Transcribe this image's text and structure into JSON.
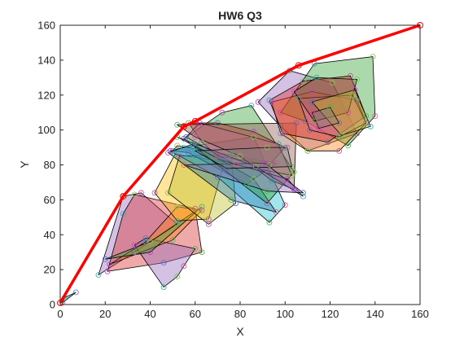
{
  "chart_data": {
    "type": "scatter",
    "title": "HW6 Q3",
    "xlabel": "X",
    "ylabel": "Y",
    "xlim": [
      0,
      160
    ],
    "ylim": [
      0,
      160
    ],
    "xticks": [
      "0",
      "20",
      "40",
      "60",
      "80",
      "100",
      "120",
      "140",
      "160"
    ],
    "yticks": [
      "0",
      "20",
      "40",
      "60",
      "80",
      "100",
      "120",
      "140",
      "160"
    ],
    "grid": false,
    "box": true,
    "hull_line": {
      "color": "#ff0000",
      "marker_color": "#ff0000",
      "points": [
        [
          0,
          1
        ],
        [
          28,
          62
        ],
        [
          55,
          102
        ],
        [
          60,
          105
        ],
        [
          106,
          137
        ],
        [
          160,
          160
        ]
      ]
    },
    "marker_colors": [
      "#4caf50",
      "#5b6abf",
      "#c040c0",
      "#2ca8a8",
      "#7cc74d",
      "#d24d8c"
    ],
    "polygons": [
      {
        "color": "#1f77b4",
        "points": [
          [
            2,
            4
          ],
          [
            7,
            7
          ],
          [
            1,
            1
          ]
        ]
      },
      {
        "color": "#9467bd",
        "points": [
          [
            17,
            17
          ],
          [
            28,
            62
          ],
          [
            36,
            64
          ],
          [
            52,
            46
          ],
          [
            33,
            30
          ]
        ]
      },
      {
        "color": "#d62728",
        "points": [
          [
            21,
            19
          ],
          [
            28,
            52
          ],
          [
            33,
            63
          ],
          [
            60,
            55
          ],
          [
            63,
            30
          ],
          [
            46,
            24
          ]
        ]
      },
      {
        "color": "#9467bd",
        "points": [
          [
            33,
            34
          ],
          [
            46,
            10
          ],
          [
            52,
            16
          ],
          [
            55,
            22
          ],
          [
            60,
            32
          ],
          [
            38,
            38
          ]
        ]
      },
      {
        "color": "#ff7f0e",
        "points": [
          [
            22,
            23
          ],
          [
            38,
            36
          ],
          [
            52,
            56
          ],
          [
            63,
            54
          ],
          [
            50,
            37
          ]
        ]
      },
      {
        "color": "#2ca02c",
        "points": [
          [
            20,
            26
          ],
          [
            40,
            30
          ],
          [
            63,
            56
          ],
          [
            40,
            36
          ]
        ]
      },
      {
        "color": "#ffbf00",
        "points": [
          [
            42,
            64
          ],
          [
            51,
            86
          ],
          [
            73,
            82
          ],
          [
            66,
            49
          ],
          [
            52,
            48
          ]
        ]
      },
      {
        "color": "#bcbd22",
        "points": [
          [
            48,
            64
          ],
          [
            53,
            85
          ],
          [
            76,
            86
          ],
          [
            78,
            58
          ],
          [
            66,
            46
          ]
        ]
      },
      {
        "color": "#8c564b",
        "points": [
          [
            50,
            88
          ],
          [
            52,
            91
          ],
          [
            96,
            81
          ],
          [
            83,
            69
          ],
          [
            57,
            87
          ]
        ]
      },
      {
        "color": "#17becf",
        "points": [
          [
            49,
            88
          ],
          [
            55,
            90
          ],
          [
            86,
            96
          ],
          [
            100,
            57
          ],
          [
            93,
            47
          ],
          [
            70,
            73
          ]
        ]
      },
      {
        "color": "#1f77b4",
        "points": [
          [
            48,
            87
          ],
          [
            59,
            92
          ],
          [
            86,
            72
          ],
          [
            96,
            53
          ],
          [
            76,
            60
          ]
        ]
      },
      {
        "color": "#2ca02c",
        "points": [
          [
            55,
            95
          ],
          [
            72,
            110
          ],
          [
            85,
            114
          ],
          [
            104,
            76
          ],
          [
            92,
            58
          ]
        ]
      },
      {
        "color": "#d62728",
        "points": [
          [
            57,
            104
          ],
          [
            70,
            104
          ],
          [
            86,
            99
          ],
          [
            100,
            90
          ],
          [
            93,
            80
          ],
          [
            70,
            85
          ],
          [
            63,
            93
          ]
        ]
      },
      {
        "color": "#e377c2",
        "points": [
          [
            56,
            96
          ],
          [
            62,
            104
          ],
          [
            97,
            92
          ],
          [
            103,
            74
          ],
          [
            78,
            80
          ]
        ]
      },
      {
        "color": "#8c564b",
        "points": [
          [
            52,
            103
          ],
          [
            105,
            104
          ],
          [
            104,
            66
          ],
          [
            94,
            71
          ],
          [
            80,
            85
          ],
          [
            60,
            96
          ]
        ]
      },
      {
        "color": "#9467bd",
        "points": [
          [
            52,
            96
          ],
          [
            71,
            83
          ],
          [
            101,
            72
          ],
          [
            108,
            62
          ],
          [
            87,
            79
          ]
        ]
      },
      {
        "color": "#9467bd",
        "points": [
          [
            55,
            80
          ],
          [
            92,
            65
          ],
          [
            108,
            64
          ],
          [
            91,
            81
          ]
        ]
      },
      {
        "color": "#7f7f7f",
        "points": [
          [
            60,
            88
          ],
          [
            92,
            90
          ],
          [
            101,
            90
          ],
          [
            103,
            79
          ],
          [
            74,
            78
          ]
        ]
      },
      {
        "color": "#9467bd",
        "points": [
          [
            88,
            116
          ],
          [
            102,
            134
          ],
          [
            121,
            127
          ],
          [
            132,
            98
          ],
          [
            110,
            88
          ],
          [
            98,
            102
          ]
        ]
      },
      {
        "color": "#2ca02c",
        "points": [
          [
            98,
            110
          ],
          [
            113,
            138
          ],
          [
            139,
            142
          ],
          [
            140,
            108
          ],
          [
            128,
            91
          ],
          [
            109,
            105
          ]
        ]
      },
      {
        "color": "#ff7f0e",
        "points": [
          [
            94,
            116
          ],
          [
            98,
            98
          ],
          [
            110,
            88
          ],
          [
            124,
            88
          ],
          [
            136,
            104
          ],
          [
            132,
            117
          ],
          [
            112,
            122
          ]
        ]
      },
      {
        "color": "#d62728",
        "points": [
          [
            93,
            117
          ],
          [
            108,
            128
          ],
          [
            129,
            131
          ],
          [
            136,
            108
          ],
          [
            119,
            93
          ],
          [
            99,
            98
          ]
        ]
      },
      {
        "color": "#e377c2",
        "points": [
          [
            106,
            118
          ],
          [
            130,
            120
          ],
          [
            136,
            104
          ],
          [
            124,
            96
          ],
          [
            111,
            100
          ]
        ]
      },
      {
        "color": "#8c564b",
        "points": [
          [
            104,
            122
          ],
          [
            114,
            130
          ],
          [
            132,
            129
          ],
          [
            128,
            110
          ],
          [
            113,
            105
          ]
        ]
      },
      {
        "color": "#bcbd22",
        "points": [
          [
            112,
            116
          ],
          [
            131,
            123
          ],
          [
            138,
            102
          ],
          [
            125,
            97
          ]
        ]
      },
      {
        "color": "#7f7f7f",
        "points": [
          [
            112,
            110
          ],
          [
            120,
            113
          ],
          [
            124,
            104
          ],
          [
            115,
            101
          ]
        ]
      }
    ]
  }
}
